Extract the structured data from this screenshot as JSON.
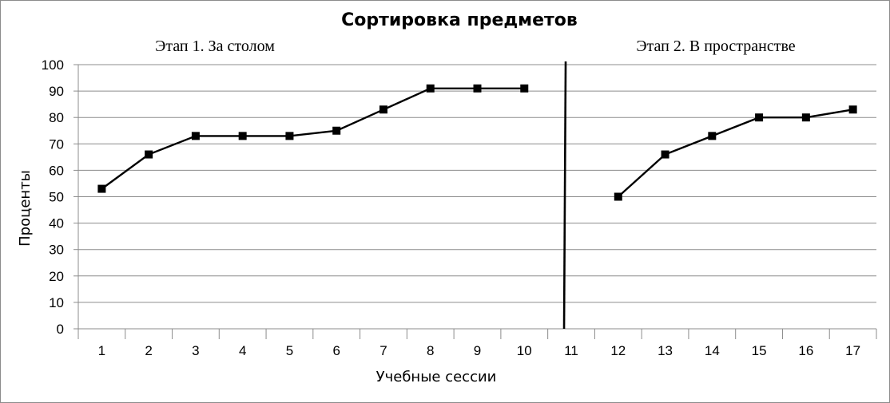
{
  "chart_data": {
    "type": "line",
    "title": "Сортировка предметов",
    "xlabel": "Учебные сессии",
    "ylabel": "Проценты",
    "ylim": [
      0,
      100
    ],
    "y_ticks": [
      0,
      10,
      20,
      30,
      40,
      50,
      60,
      70,
      80,
      90,
      100
    ],
    "categories": [
      "1",
      "2",
      "3",
      "4",
      "5",
      "6",
      "7",
      "8",
      "9",
      "10",
      "11",
      "12",
      "13",
      "14",
      "15",
      "16",
      "17"
    ],
    "grid": true,
    "phase_labels": [
      "Этап 1. За столом",
      "Этап 2. В пространстве"
    ],
    "phase_change_after": "10",
    "series": [
      {
        "segments": [
          {
            "x": [
              "1",
              "2",
              "3",
              "4",
              "5",
              "6",
              "7",
              "8",
              "9",
              "10"
            ],
            "y": [
              53,
              66,
              73,
              73,
              73,
              75,
              83,
              91,
              91,
              91
            ]
          },
          {
            "x": [
              "12",
              "13",
              "14",
              "15",
              "16",
              "17"
            ],
            "y": [
              50,
              66,
              73,
              80,
              80,
              83
            ]
          }
        ]
      }
    ]
  }
}
